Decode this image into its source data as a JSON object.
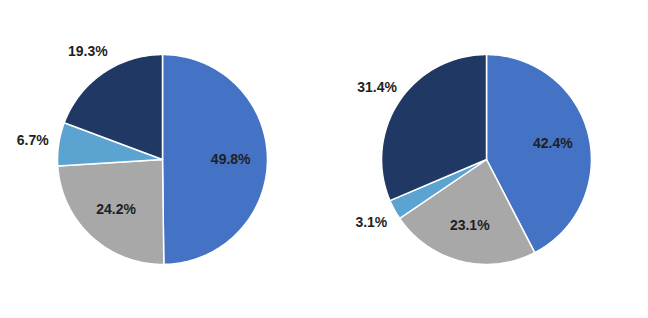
{
  "chart_data": [
    {
      "type": "pie",
      "values": [
        49.8,
        24.2,
        6.7,
        19.3
      ],
      "value_labels": [
        "49.8%",
        "24.2%",
        "6.7%",
        "19.3%"
      ],
      "colors": [
        "#4472C4",
        "#A8A8A8",
        "#5BA3D0",
        "#1F3864"
      ],
      "data_labels": true
    },
    {
      "type": "pie",
      "values": [
        42.4,
        23.1,
        3.1,
        31.4
      ],
      "value_labels": [
        "42.4%",
        "23.1%",
        "3.1%",
        "31.4%"
      ],
      "colors": [
        "#4472C4",
        "#A8A8A8",
        "#5BA3D0",
        "#1F3864"
      ],
      "data_labels": true
    }
  ]
}
